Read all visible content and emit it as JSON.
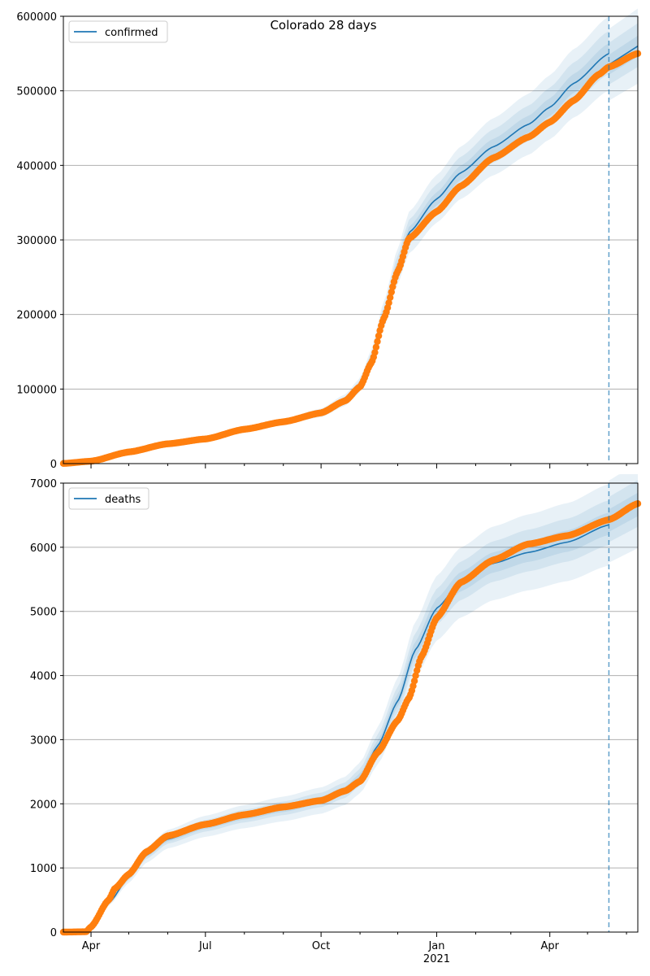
{
  "figure": {
    "title": "Colorado 28 days"
  },
  "colors": {
    "model_line": "#1f77b4",
    "observed_points": "#ff7f0e",
    "band": "#1f77b4",
    "grid": "#b0b0b0",
    "forecast_line": "#1f77b4"
  },
  "x_axis": {
    "domain": [
      "2020-03-10",
      "2021-06-10"
    ],
    "tick_labels": [
      {
        "date": "2020-04-01",
        "label": "Apr"
      },
      {
        "date": "2020-07-01",
        "label": "Jul"
      },
      {
        "date": "2020-10-01",
        "label": "Oct"
      },
      {
        "date": "2021-01-01",
        "label": "Jan"
      },
      {
        "date": "2021-04-01",
        "label": "Apr"
      }
    ],
    "year_label": {
      "date": "2021-01-01",
      "label": "2021"
    },
    "minor_tick_dates": [
      "2020-05-01",
      "2020-06-01",
      "2020-08-01",
      "2020-09-01",
      "2020-11-01",
      "2020-12-01",
      "2021-02-01",
      "2021-03-01",
      "2021-05-01",
      "2021-06-01"
    ],
    "forecast_date": "2021-05-18"
  },
  "chart_data": [
    {
      "type": "line",
      "panel": "top",
      "legend": "confirmed",
      "legend_position": "upper-left",
      "grid": "horizontal",
      "ylim": [
        0,
        600000
      ],
      "yticks": [
        0,
        100000,
        200000,
        300000,
        400000,
        500000,
        600000
      ],
      "model": {
        "name": "confirmed",
        "points": [
          [
            "2020-03-10",
            200
          ],
          [
            "2020-04-01",
            3500
          ],
          [
            "2020-05-01",
            16000
          ],
          [
            "2020-06-01",
            27000
          ],
          [
            "2020-07-01",
            33000
          ],
          [
            "2020-08-01",
            46000
          ],
          [
            "2020-09-01",
            56000
          ],
          [
            "2020-10-01",
            68000
          ],
          [
            "2020-10-20",
            85000
          ],
          [
            "2020-11-01",
            105000
          ],
          [
            "2020-11-10",
            140000
          ],
          [
            "2020-11-20",
            200000
          ],
          [
            "2020-12-01",
            265000
          ],
          [
            "2020-12-10",
            310000
          ],
          [
            "2021-01-01",
            355000
          ],
          [
            "2021-01-20",
            390000
          ],
          [
            "2021-02-15",
            425000
          ],
          [
            "2021-03-15",
            455000
          ],
          [
            "2021-04-01",
            478000
          ],
          [
            "2021-04-20",
            510000
          ],
          [
            "2021-05-18",
            550000
          ]
        ],
        "forecast_points": [
          [
            "2021-05-18",
            535000
          ],
          [
            "2021-06-10",
            560000
          ]
        ],
        "bands": [
          {
            "rel_low": 0.91,
            "rel_high": 1.09,
            "start": "2020-10-15"
          },
          {
            "rel_low": 0.95,
            "rel_high": 1.055,
            "start": "2020-10-15"
          },
          {
            "rel_low": 0.975,
            "rel_high": 1.025,
            "start": "2020-10-15"
          }
        ]
      },
      "observed": {
        "points": [
          [
            "2020-03-10",
            200
          ],
          [
            "2020-04-01",
            3200
          ],
          [
            "2020-05-01",
            15500
          ],
          [
            "2020-06-01",
            26500
          ],
          [
            "2020-07-01",
            33000
          ],
          [
            "2020-08-01",
            46000
          ],
          [
            "2020-09-01",
            56000
          ],
          [
            "2020-10-01",
            68000
          ],
          [
            "2020-10-20",
            84000
          ],
          [
            "2020-11-01",
            103000
          ],
          [
            "2020-11-10",
            135000
          ],
          [
            "2020-11-20",
            195000
          ],
          [
            "2020-12-01",
            258000
          ],
          [
            "2020-12-10",
            302000
          ],
          [
            "2021-01-01",
            338000
          ],
          [
            "2021-01-20",
            372000
          ],
          [
            "2021-02-15",
            410000
          ],
          [
            "2021-03-15",
            438000
          ],
          [
            "2021-04-01",
            458000
          ],
          [
            "2021-04-20",
            487000
          ],
          [
            "2021-05-10",
            522000
          ],
          [
            "2021-05-18",
            532000
          ],
          [
            "2021-06-10",
            550000
          ]
        ]
      }
    },
    {
      "type": "line",
      "panel": "bottom",
      "legend": "deaths",
      "legend_position": "upper-left",
      "grid": "horizontal",
      "ylim": [
        0,
        7000
      ],
      "yticks": [
        0,
        1000,
        2000,
        3000,
        4000,
        5000,
        6000,
        7000
      ],
      "model": {
        "name": "deaths",
        "points": [
          [
            "2020-03-10",
            0
          ],
          [
            "2020-03-25",
            10
          ],
          [
            "2020-04-01",
            80
          ],
          [
            "2020-04-15",
            450
          ],
          [
            "2020-05-01",
            850
          ],
          [
            "2020-05-15",
            1200
          ],
          [
            "2020-06-01",
            1450
          ],
          [
            "2020-07-01",
            1650
          ],
          [
            "2020-08-01",
            1800
          ],
          [
            "2020-09-01",
            1920
          ],
          [
            "2020-10-01",
            2050
          ],
          [
            "2020-10-20",
            2200
          ],
          [
            "2020-11-01",
            2400
          ],
          [
            "2020-11-15",
            2900
          ],
          [
            "2020-12-01",
            3600
          ],
          [
            "2020-12-15",
            4400
          ],
          [
            "2021-01-01",
            5050
          ],
          [
            "2021-01-20",
            5450
          ],
          [
            "2021-02-15",
            5750
          ],
          [
            "2021-03-15",
            5920
          ],
          [
            "2021-04-15",
            6080
          ],
          [
            "2021-05-18",
            6350
          ]
        ],
        "forecast_points": [
          [
            "2021-05-18",
            6400
          ],
          [
            "2021-06-10",
            6650
          ]
        ],
        "bands": [
          {
            "rel_low": 0.9,
            "rel_high": 1.1,
            "start": "2020-04-20"
          },
          {
            "rel_low": 0.95,
            "rel_high": 1.06,
            "start": "2020-04-20"
          },
          {
            "rel_low": 0.975,
            "rel_high": 1.03,
            "start": "2020-04-20"
          }
        ]
      },
      "observed": {
        "points": [
          [
            "2020-03-10",
            0
          ],
          [
            "2020-03-28",
            5
          ],
          [
            "2020-04-01",
            80
          ],
          [
            "2020-04-15",
            500
          ],
          [
            "2020-04-20",
            680
          ],
          [
            "2020-05-01",
            900
          ],
          [
            "2020-05-15",
            1250
          ],
          [
            "2020-06-01",
            1500
          ],
          [
            "2020-07-01",
            1680
          ],
          [
            "2020-08-01",
            1830
          ],
          [
            "2020-09-01",
            1950
          ],
          [
            "2020-10-01",
            2050
          ],
          [
            "2020-10-20",
            2200
          ],
          [
            "2020-11-01",
            2350
          ],
          [
            "2020-11-15",
            2800
          ],
          [
            "2020-12-01",
            3300
          ],
          [
            "2020-12-10",
            3650
          ],
          [
            "2020-12-20",
            4300
          ],
          [
            "2021-01-01",
            4900
          ],
          [
            "2021-01-20",
            5450
          ],
          [
            "2021-02-15",
            5800
          ],
          [
            "2021-03-15",
            6050
          ],
          [
            "2021-04-15",
            6180
          ],
          [
            "2021-05-18",
            6430
          ],
          [
            "2021-06-10",
            6680
          ]
        ]
      }
    }
  ]
}
